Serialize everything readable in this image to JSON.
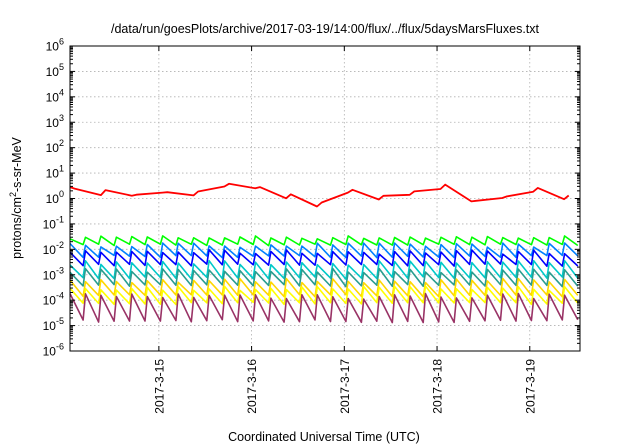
{
  "chart_data": {
    "type": "line",
    "title": "/data/run/goesPlots/archive/2017-03-19/14:00/flux/../flux/5daysMarsFluxes.txt",
    "xlabel": "Coordinated Universal Time (UTC)",
    "ylabel": {
      "pre": "protons/cm",
      "sup": "2",
      "post": "-s-sr-MeV"
    },
    "y_scale": "log",
    "ylim_exp": [
      -6,
      6
    ],
    "y_tick_exponents": [
      -6,
      -5,
      -4,
      -3,
      -2,
      -1,
      0,
      1,
      2,
      3,
      4,
      5,
      6
    ],
    "x_range": [
      "2017-03-14 01:00",
      "2017-03-19 13:00"
    ],
    "x_ticks": [
      "2017-3-15",
      "2017-3-16",
      "2017-3-17",
      "2017-3-18",
      "2017-3-19"
    ],
    "grid": true,
    "legend": "none",
    "series": [
      {
        "color": "#ff0000",
        "kind": "slow",
        "period_days": 0.333,
        "decay": 0.8,
        "rise": 0.6,
        "anchors": [
          {
            "x": "2017-03-14 01:00",
            "y": 3.5
          },
          {
            "x": "2017-03-14 12:00",
            "y": 1.3
          },
          {
            "x": "2017-03-15 00:00",
            "y": 2.2
          },
          {
            "x": "2017-03-15 12:00",
            "y": 1.5
          },
          {
            "x": "2017-03-15 14:00",
            "y": 0.7
          },
          {
            "x": "2017-03-15 17:00",
            "y": 3.8
          },
          {
            "x": "2017-03-16 00:00",
            "y": 3.5
          },
          {
            "x": "2017-03-16 12:00",
            "y": 0.9
          },
          {
            "x": "2017-03-16 17:00",
            "y": 0.6
          },
          {
            "x": "2017-03-17 00:00",
            "y": 2.3
          },
          {
            "x": "2017-03-17 12:00",
            "y": 0.9
          },
          {
            "x": "2017-03-17 22:00",
            "y": 3.5
          },
          {
            "x": "2017-03-18 06:00",
            "y": 2.2
          },
          {
            "x": "2017-03-18 10:00",
            "y": 0.7
          },
          {
            "x": "2017-03-19 00:00",
            "y": 2.5
          },
          {
            "x": "2017-03-19 12:00",
            "y": 0.9
          },
          {
            "x": "2017-03-19 13:00",
            "y": 0.7
          }
        ]
      },
      {
        "color": "#00ff00",
        "kind": "sawtooth",
        "period_days": 0.1667,
        "base": 0.03,
        "dip": 0.5,
        "jitter": 0.15
      },
      {
        "color": "#0080ff",
        "kind": "sawtooth",
        "period_days": 0.1667,
        "base": 0.015,
        "dip": 0.35,
        "jitter": 0.2
      },
      {
        "color": "#0000ff",
        "kind": "sawtooth",
        "period_days": 0.1667,
        "base": 0.008,
        "dip": 0.3,
        "jitter": 0.2
      },
      {
        "color": "#00c8c8",
        "kind": "sawtooth",
        "period_days": 0.1667,
        "base": 0.003,
        "dip": 0.25,
        "jitter": 0.2
      },
      {
        "color": "#2a9d8f",
        "kind": "sawtooth",
        "period_days": 0.1667,
        "base": 0.0015,
        "dip": 0.25,
        "jitter": 0.2
      },
      {
        "color": "#ffd700",
        "kind": "sawtooth",
        "period_days": 0.1667,
        "base": 0.0006,
        "dip": 0.25,
        "jitter": 0.2
      },
      {
        "color": "#ffff00",
        "kind": "sawtooth",
        "period_days": 0.1667,
        "base": 0.0003,
        "dip": 0.25,
        "jitter": 0.2
      },
      {
        "color": "#993366",
        "kind": "sawtooth",
        "period_days": 0.1667,
        "base": 0.00015,
        "dip": 0.1,
        "jitter": 0.3
      }
    ]
  }
}
